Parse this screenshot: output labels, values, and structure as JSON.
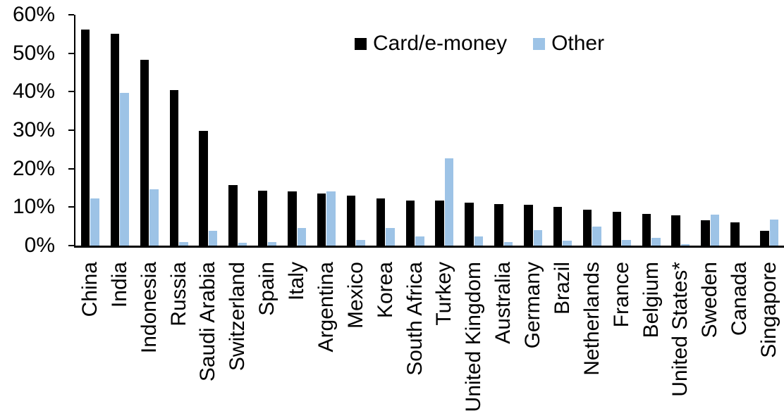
{
  "chart_data": {
    "type": "bar",
    "title": "",
    "xlabel": "",
    "ylabel": "",
    "ylim": [
      0,
      60
    ],
    "yticks": [
      0,
      10,
      20,
      30,
      40,
      50,
      60
    ],
    "ytick_suffix": "%",
    "grid": false,
    "legend_position": "top-center",
    "categories": [
      "China",
      "India",
      "Indonesia",
      "Russia",
      "Saudi Arabia",
      "Switzerland",
      "Spain",
      "Italy",
      "Argentina",
      "Mexico",
      "Korea",
      "South Africa",
      "Turkey",
      "United Kingdom",
      "Australia",
      "Germany",
      "Brazil",
      "Netherlands",
      "France",
      "Belgium",
      "United States*",
      "Sweden",
      "Canada",
      "Singapore"
    ],
    "series": [
      {
        "name": "Card/e-money",
        "color": "#000000",
        "values": [
          56.2,
          55.0,
          48.3,
          40.5,
          29.9,
          15.7,
          14.2,
          14.1,
          13.5,
          13.0,
          12.3,
          11.8,
          11.7,
          11.1,
          10.8,
          10.7,
          10.0,
          9.3,
          8.7,
          8.2,
          7.9,
          6.5,
          6.0,
          3.9
        ]
      },
      {
        "name": "Other",
        "color": "#9DC3E6",
        "values": [
          12.3,
          39.7,
          14.6,
          1.0,
          3.9,
          0.8,
          1.0,
          4.6,
          14.0,
          1.4,
          4.6,
          2.4,
          22.6,
          2.4,
          1.0,
          4.0,
          1.2,
          4.9,
          1.5,
          2.1,
          0.3,
          8.0,
          0.0,
          6.7
        ]
      }
    ]
  },
  "colors": {
    "axis": "#000000",
    "text": "#000000",
    "background": "#ffffff"
  }
}
